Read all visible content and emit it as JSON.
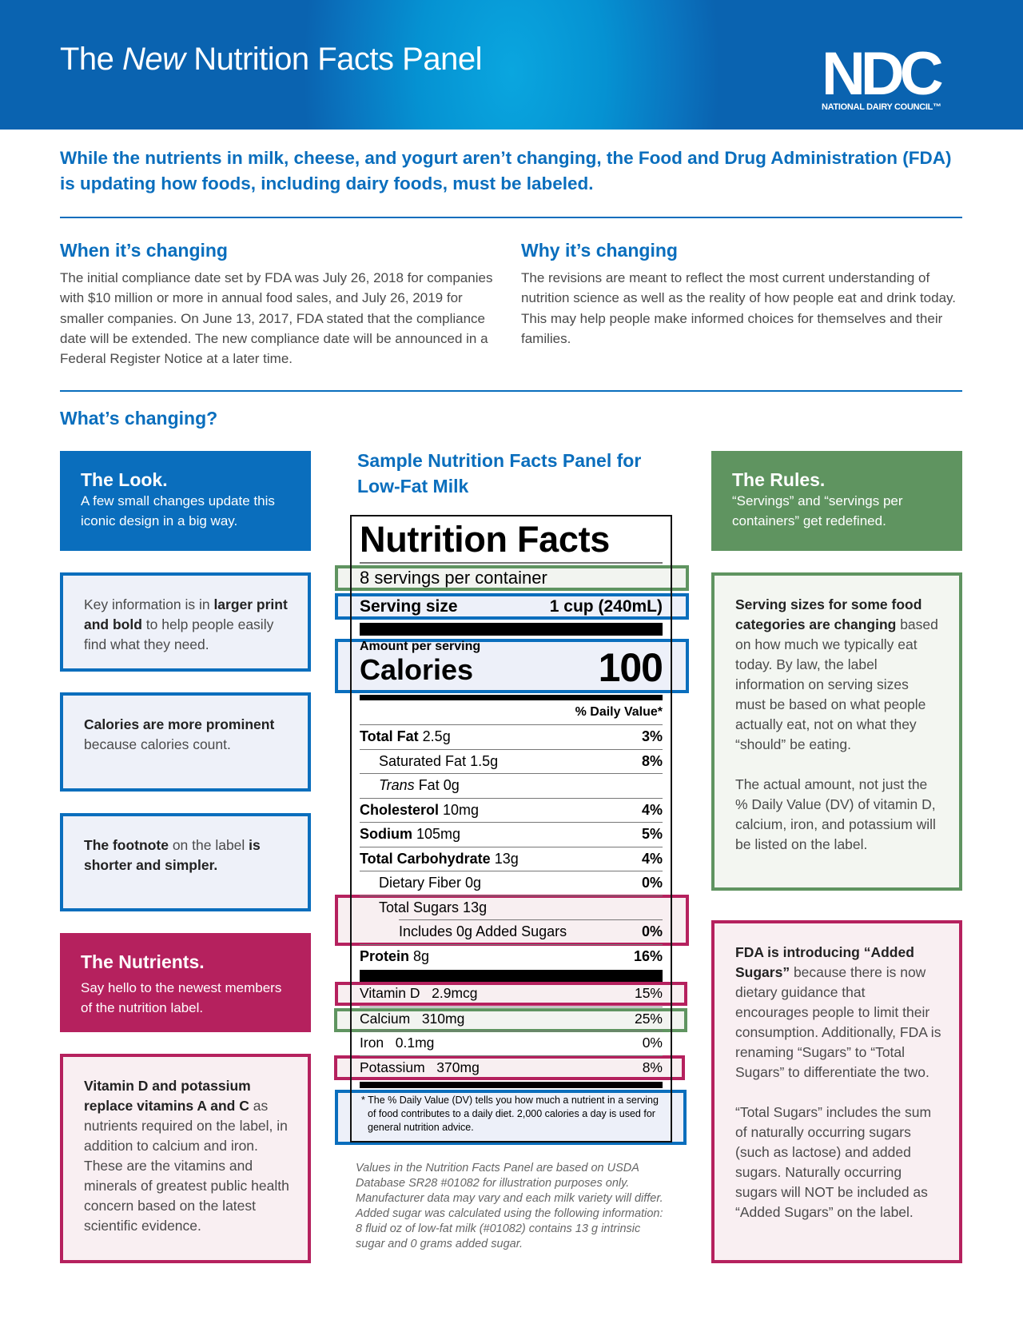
{
  "header": {
    "title_pre": "The ",
    "title_em": "New",
    "title_post": " Nutrition Facts Panel",
    "logo_letters": "NDC",
    "logo_text": "NATIONAL DAIRY COUNCIL™"
  },
  "intro": "While the nutrients in milk, cheese, and yogurt aren’t changing, the Food and Drug Administration (FDA) is updating how foods, including dairy foods, must be labeled.",
  "when": {
    "heading": "When it’s changing",
    "body": "The initial compliance date set by FDA was July 26, 2018 for companies with $10 million or more in annual food sales, and July 26, 2019 for smaller companies. On June 13, 2017, FDA stated that the compliance date will be extended.  The new compliance date will be announced in a Federal Register Notice at a later time."
  },
  "why": {
    "heading": "Why it’s changing",
    "body": "The revisions are meant to reflect the most current understanding of nutrition science as well as the reality of how people eat and drink today. This may help people make informed choices for themselves and their families."
  },
  "whats_changing": "What’s changing?",
  "left": {
    "look": {
      "title": "The Look.",
      "sub": "A few small changes update this iconic design in a big way."
    },
    "key": {
      "a": "Key information is in ",
      "b": "larger print and bold",
      "c": " to help people easily find what they need."
    },
    "calories": {
      "b": "Calories are more prominent",
      "c": " because calories count."
    },
    "footnote": {
      "b1": "The footnote",
      "c": " on the label ",
      "b2": "is shorter and simpler."
    },
    "nutrients": {
      "title": "The Nutrients.",
      "sub": "Say hello to the newest members of the nutrition label."
    },
    "vitd": {
      "b": "Vitamin D and potassium replace vitamins A and C",
      "c": " as nutrients required on the label, in addition to calcium and iron. These are the vitamins and minerals of greatest public health concern based on the latest scientific evidence."
    }
  },
  "center": {
    "heading": "Sample Nutrition Facts Panel for Low-Fat Milk",
    "note": "Values in the Nutrition Facts Panel are based on USDA Database SR28 #01082 for illustration purposes only. Manufacturer data may vary and each milk variety will differ. Added sugar was calculated using the following information: 8 fluid oz of low-fat milk (#01082) contains 13 g intrinsic sugar and 0 grams added sugar."
  },
  "label": {
    "title": "Nutrition Facts",
    "servings": "8 servings per container",
    "serving_size_label": "Serving size",
    "serving_size_value": "1 cup (240mL)",
    "amount_per_serving": "Amount per serving",
    "calories_label": "Calories",
    "calories_value": "100",
    "dv_header": "% Daily Value*",
    "rows": [
      {
        "bold": "Total Fat",
        "rest": " 2.5g",
        "dv": "3%"
      },
      {
        "rest": "Saturated Fat 1.5g",
        "dv": "8%"
      },
      {
        "italic": "Trans",
        "rest": " Fat 0g",
        "dv": ""
      },
      {
        "bold": "Cholesterol",
        "rest": " 10mg",
        "dv": "4%"
      },
      {
        "bold": "Sodium",
        "rest": " 105mg",
        "dv": "5%"
      },
      {
        "bold": "Total Carbohydrate",
        "rest": " 13g",
        "dv": "4%"
      },
      {
        "rest": "Dietary Fiber 0g",
        "dv": "0%"
      },
      {
        "rest": "Total Sugars 13g",
        "dv": ""
      },
      {
        "rest": "Includes 0g Added Sugars",
        "dv": "0%"
      },
      {
        "bold": "Protein",
        "rest": " 8g",
        "dv": "16%"
      }
    ],
    "vitamins": [
      {
        "name": "Vitamin D",
        "amount": "2.9mcg",
        "dv": "15%"
      },
      {
        "name": "Calcium",
        "amount": "310mg",
        "dv": "25%"
      },
      {
        "name": "Iron",
        "amount": "0.1mg",
        "dv": "0%"
      },
      {
        "name": "Potassium",
        "amount": "370mg",
        "dv": "8%"
      }
    ],
    "footnote": "* The % Daily Value (DV) tells you how much a nutrient in a serving of food contributes to a daily diet. 2,000 calories a day is used for general nutrition advice."
  },
  "right": {
    "rules": {
      "title": "The Rules.",
      "sub": "“Servings” and “servings per containers” get redefined."
    },
    "serving": {
      "b": "Serving sizes for some food categories are changing",
      "c": " based on how much we typically eat today. By law, the label information on serving sizes must be based on what people actually eat, not on what they “should” be eating.",
      "p2": "The actual amount, not just the % Daily Value (DV) of vitamin D, calcium, iron, and potassium will be listed on the label."
    },
    "sugars": {
      "b": "FDA is introducing “Added Sugars”",
      "c": " because there is now dietary guidance that encourages people to limit their consumption. Additionally, FDA is renaming “Sugars” to “Total Sugars” to differentiate the two.",
      "p2": "“Total Sugars” includes the sum of naturally occurring sugars (such as lactose) and added sugars. Naturally occurring sugars will NOT be included as “Added Sugars” on the label."
    }
  }
}
